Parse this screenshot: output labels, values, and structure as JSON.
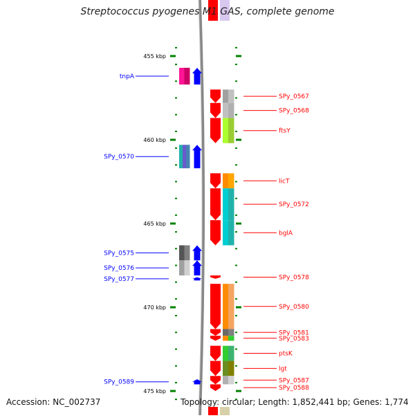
{
  "title": "Streptococcus pyogenes M1 GAS, complete genome",
  "footer": {
    "accession": "Accession: NC_002737",
    "stats": "Topology: circular; Length: 1,852,441 bp; Genes: 1,774"
  },
  "colors": {
    "plus_strand_gene": "#ff0000",
    "minus_strand_gene": "#0000ff",
    "backbone": "#888888",
    "tick": "#008000",
    "cog_colors": [
      "#ff1493",
      "#20b2aa",
      "#808080",
      "#c0c0c0",
      "#adff2f",
      "#ff8c00",
      "#00ced1",
      "#6b8e23",
      "#32cd32"
    ]
  },
  "scale": {
    "unit": "kbp",
    "ticks": [
      {
        "label": "455 kbp",
        "kbp": 455
      },
      {
        "label": "460 kbp",
        "kbp": 460
      },
      {
        "label": "465 kbp",
        "kbp": 465
      },
      {
        "label": "470 kbp",
        "kbp": 470
      },
      {
        "label": "475 kbp",
        "kbp": 475
      }
    ]
  },
  "genes": {
    "minus_strand": [
      {
        "label": "tnpA",
        "start_kbp": 455.7,
        "end_kbp": 456.7,
        "cog": [
          "#ff1493",
          "#cc0066"
        ]
      },
      {
        "label": "SPy_0570",
        "start_kbp": 460.3,
        "end_kbp": 461.7,
        "cog": [
          "#20b2aa",
          "#6a5acd",
          "#4682b4"
        ]
      },
      {
        "label": "SPy_0575",
        "start_kbp": 466.3,
        "end_kbp": 467.2,
        "cog": [
          "#555555",
          "#808080"
        ]
      },
      {
        "label": "SPy_0576",
        "start_kbp": 467.2,
        "end_kbp": 468.1,
        "cog": [
          "#a0a0a0",
          "#d0d0d0"
        ]
      },
      {
        "label": "SPy_0577",
        "start_kbp": 468.2,
        "end_kbp": 468.4,
        "cog": []
      },
      {
        "label": "SPy_0589",
        "start_kbp": 474.3,
        "end_kbp": 474.6,
        "cog": []
      }
    ],
    "plus_strand": [
      {
        "label": "SPy_0567",
        "start_kbp": 457.0,
        "end_kbp": 457.8,
        "cog": [
          "#a0a0a0",
          "#c0c0c0"
        ]
      },
      {
        "label": "SPy_0568",
        "start_kbp": 457.8,
        "end_kbp": 458.7,
        "cog": [
          "#c0c0c0",
          "#b0b0b0"
        ]
      },
      {
        "label": "ftsY",
        "start_kbp": 458.7,
        "end_kbp": 460.2,
        "cog": [
          "#adff2f",
          "#9acd32"
        ]
      },
      {
        "label": "licT",
        "start_kbp": 462.0,
        "end_kbp": 462.9,
        "cog": [
          "#ff8c00",
          "#ffa500"
        ]
      },
      {
        "label": "SPy_0572",
        "start_kbp": 462.9,
        "end_kbp": 464.8,
        "cog": [
          "#00ced1",
          "#20b2aa"
        ]
      },
      {
        "label": "bglA",
        "start_kbp": 464.8,
        "end_kbp": 466.3,
        "cog": [
          "#00ced1",
          "#20b2aa"
        ]
      },
      {
        "label": "SPy_0578",
        "start_kbp": 468.1,
        "end_kbp": 468.3,
        "cog": []
      },
      {
        "label": "SPy_0580",
        "start_kbp": 468.6,
        "end_kbp": 471.3,
        "cog": [
          "#ff8c00",
          "#f4a460"
        ]
      },
      {
        "label": "SPy_0581",
        "start_kbp": 471.3,
        "end_kbp": 471.7,
        "cog": [
          "#696969",
          "#808080"
        ]
      },
      {
        "label": "SPy_0583",
        "start_kbp": 471.7,
        "end_kbp": 472.0,
        "cog": [
          "#ff8c00",
          "#32cd32"
        ]
      },
      {
        "label": "ptsK",
        "start_kbp": 472.3,
        "end_kbp": 473.2,
        "cog": [
          "#32cd32",
          "#3cb371"
        ]
      },
      {
        "label": "lgt",
        "start_kbp": 473.2,
        "end_kbp": 474.1,
        "cog": [
          "#6b8e23",
          "#808000"
        ]
      },
      {
        "label": "SPy_0587",
        "start_kbp": 474.1,
        "end_kbp": 474.6,
        "cog": [
          "#b0b0b0",
          "#d3d3d3"
        ]
      },
      {
        "label": "SPy_0588",
        "start_kbp": 474.6,
        "end_kbp": 475.0,
        "cog": []
      }
    ]
  }
}
